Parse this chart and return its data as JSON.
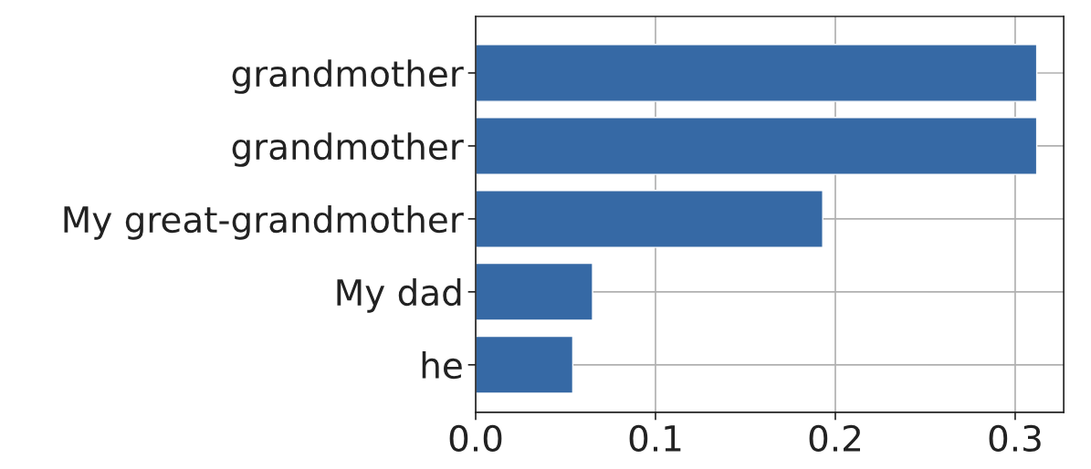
{
  "chart_data": {
    "type": "bar",
    "orientation": "horizontal",
    "categories": [
      "grandmother",
      "grandmother",
      "My great-grandmother",
      "My dad",
      "he"
    ],
    "values": [
      0.312,
      0.312,
      0.193,
      0.065,
      0.054
    ],
    "color": "#3669a5",
    "xlim": [
      0,
      0.327
    ],
    "xticks": [
      {
        "value": 0,
        "label": "0.0"
      },
      {
        "value": 0.1,
        "label": "0.1"
      },
      {
        "value": 0.2,
        "label": "0.2"
      },
      {
        "value": 0.3,
        "label": "0.3"
      }
    ],
    "grid": true
  }
}
